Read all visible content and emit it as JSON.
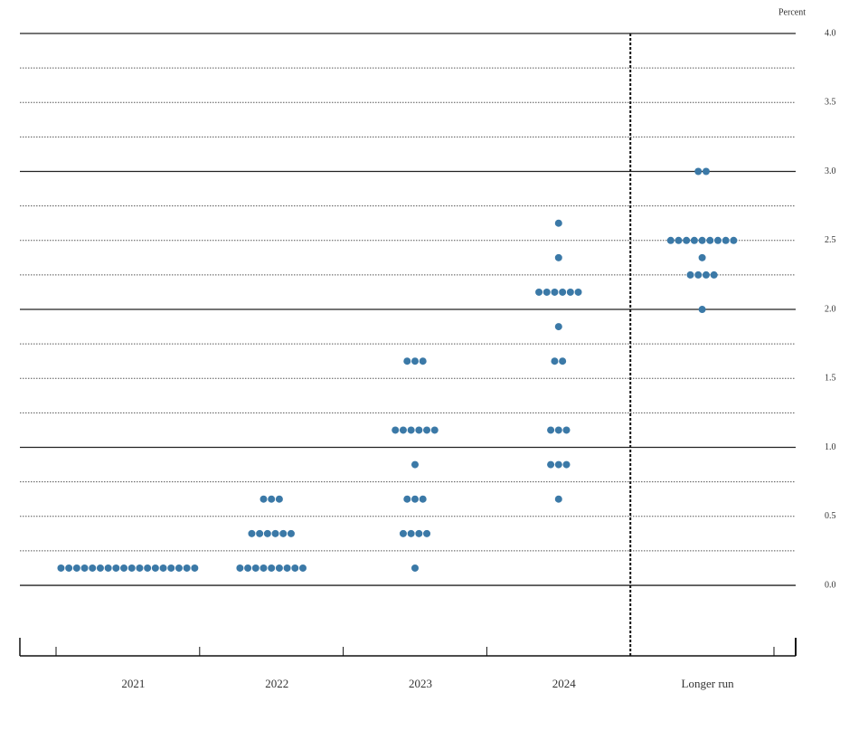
{
  "chart_data": {
    "type": "dot",
    "axis_label": "Percent",
    "color": "#3b79a7",
    "ylim": [
      -0.38,
      4.0
    ],
    "yticks": [
      {
        "value": 0,
        "label": "0.0"
      },
      {
        "value": 0.5,
        "label": "0.5"
      },
      {
        "value": 1,
        "label": "1.0"
      },
      {
        "value": 1.5,
        "label": "1.5"
      },
      {
        "value": 2,
        "label": "2.0"
      },
      {
        "value": 2.5,
        "label": "2.5"
      },
      {
        "value": 3,
        "label": "3.0"
      },
      {
        "value": 3.5,
        "label": "3.5"
      },
      {
        "value": 4,
        "label": "4.0"
      }
    ],
    "minor_yticks": [
      0.25,
      0.75,
      1.25,
      1.75,
      2.25,
      2.75,
      3.25,
      3.75
    ],
    "categories": [
      "2021",
      "2022",
      "2023",
      "2024",
      "Longer run"
    ],
    "groups": [
      {
        "dots": [
          {
            "y": 0.125,
            "count": 18
          }
        ]
      },
      {
        "dots": [
          {
            "y": 0.125,
            "count": 9
          },
          {
            "y": 0.375,
            "count": 6
          },
          {
            "y": 0.625,
            "count": 3
          }
        ]
      },
      {
        "dots": [
          {
            "y": 0.125,
            "count": 1
          },
          {
            "y": 0.375,
            "count": 4
          },
          {
            "y": 0.625,
            "count": 3
          },
          {
            "y": 0.875,
            "count": 1
          },
          {
            "y": 1.125,
            "count": 6
          },
          {
            "y": 1.625,
            "count": 3
          }
        ]
      },
      {
        "dots": [
          {
            "y": 0.625,
            "count": 1
          },
          {
            "y": 0.875,
            "count": 3
          },
          {
            "y": 1.125,
            "count": 3
          },
          {
            "y": 1.625,
            "count": 2
          },
          {
            "y": 1.875,
            "count": 1
          },
          {
            "y": 2.125,
            "count": 6
          },
          {
            "y": 2.375,
            "count": 1
          },
          {
            "y": 2.625,
            "count": 1
          }
        ]
      },
      {
        "dots": [
          {
            "y": 2.0,
            "count": 1
          },
          {
            "y": 2.25,
            "count": 4
          },
          {
            "y": 2.375,
            "count": 1
          },
          {
            "y": 2.5,
            "count": 9
          },
          {
            "y": 3.0,
            "count": 2
          }
        ]
      }
    ]
  }
}
